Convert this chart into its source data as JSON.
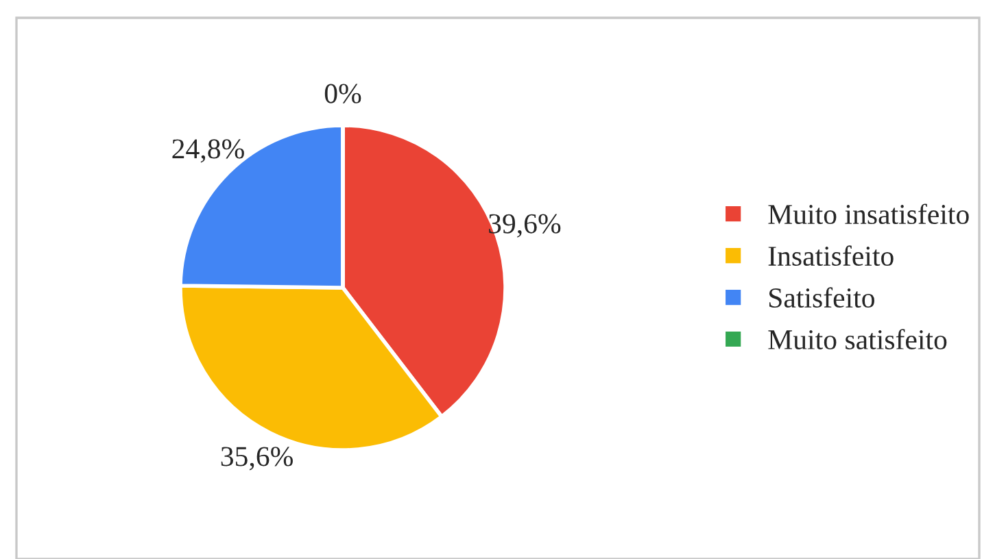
{
  "chart_data": {
    "type": "pie",
    "categories": [
      "Muito insatisfeito",
      "Insatisfeito",
      "Satisfeito",
      "Muito satisfeito"
    ],
    "values": [
      39.6,
      35.6,
      24.8,
      0
    ],
    "colors": [
      "#ea4335",
      "#fbbc04",
      "#4285f4",
      "#34a853"
    ],
    "value_labels": [
      "39,6%",
      "35,6%",
      "24,8%",
      "0%"
    ],
    "legend": "right"
  }
}
